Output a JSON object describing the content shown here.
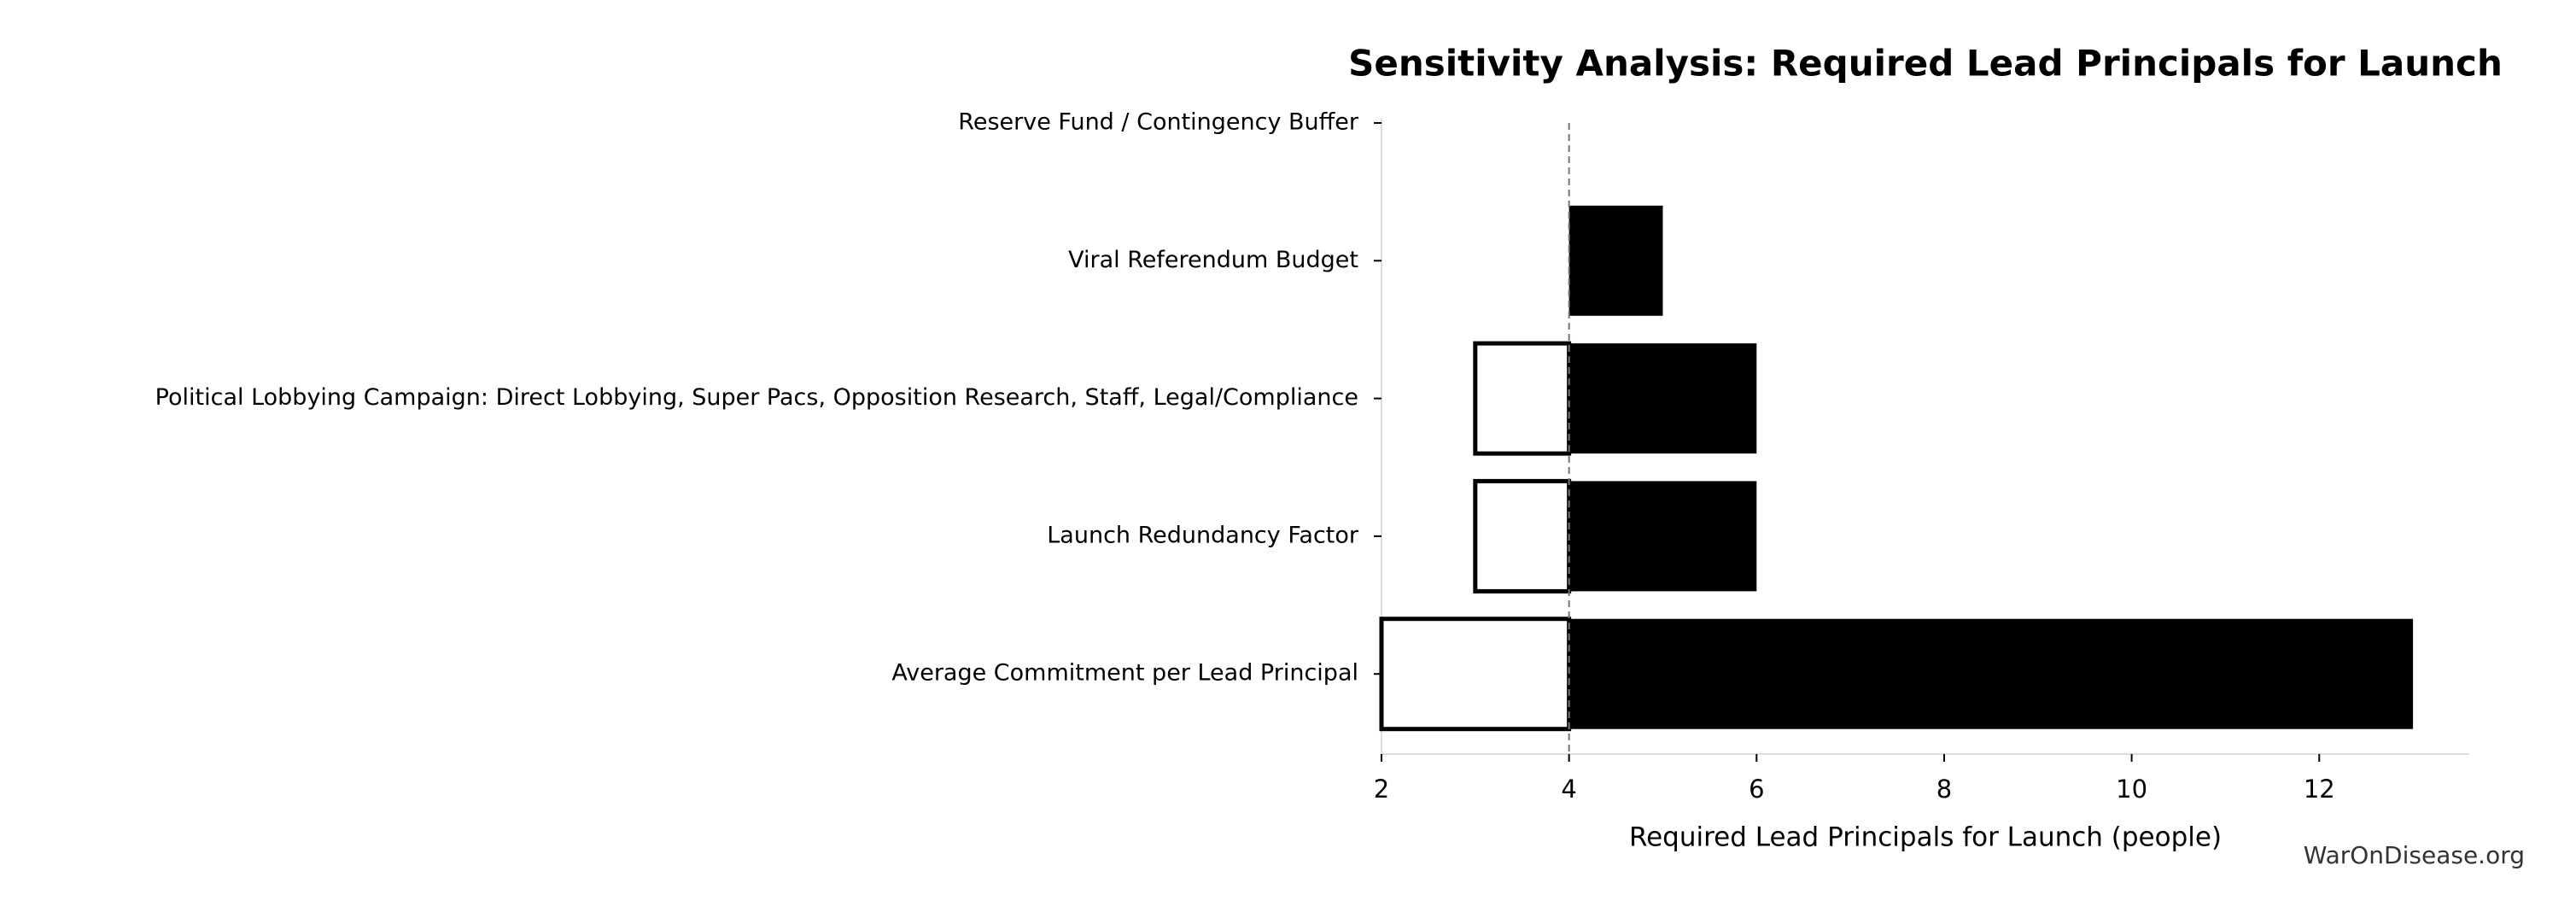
{
  "chart_data": {
    "type": "tornado",
    "title": "Sensitivity Analysis: Required Lead Principals for Launch",
    "x_label": "Required Lead Principals for Launch (people)",
    "watermark": "WarOnDisease.org",
    "categories": [
      "Reserve Fund / Contingency Buffer",
      "Viral Referendum Budget",
      "Political Lobbying Campaign: Direct Lobbying, Super Pacs, Opposition Research, Staff, Legal/Compliance",
      "Launch Redundancy Factor",
      "Average Commitment per Lead Principal"
    ],
    "baseline": 4,
    "low_values": [
      4,
      4,
      3,
      3,
      2
    ],
    "high_values": [
      4,
      5,
      6,
      6,
      13
    ],
    "low_color": "#ffffff",
    "high_color": "#000000",
    "xlim": [
      2,
      13.6
    ],
    "xticks": [
      2,
      4,
      6,
      8,
      10,
      12
    ]
  }
}
